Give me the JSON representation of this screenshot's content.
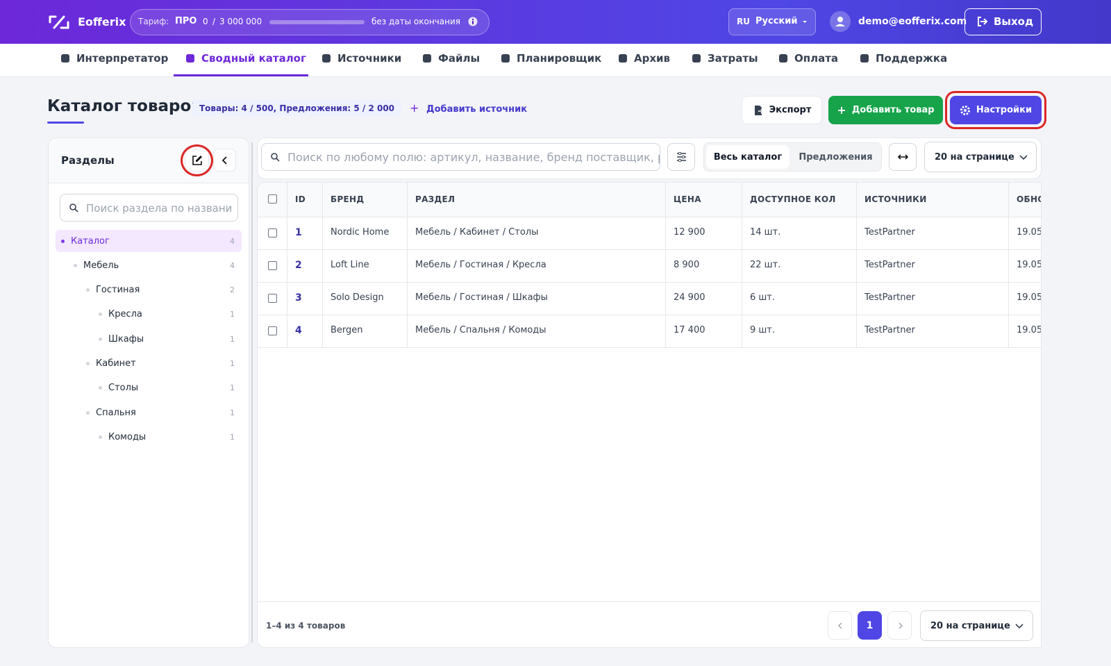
{
  "header": {
    "logo": "Eofferix",
    "plan_label": "Тариф:",
    "plan": "ПРО",
    "usage": "0",
    "separator": "/",
    "limit": "3 000 000",
    "expiry": "без даты окончания",
    "lang_code": "RU",
    "lang": "Русский",
    "user": "demo@eofferix.com",
    "logout": "Выход"
  },
  "nav": [
    "Интерпретатор",
    "Сводный каталог",
    "Источники",
    "Файлы",
    "Планировщик",
    "Архив",
    "Затраты",
    "Оплата",
    "Поддержка"
  ],
  "page": {
    "title": "Каталог товаров",
    "stats": "Товары: 4 / 500, Предложения: 5 / 2 000",
    "add_source": "Добавить источник",
    "export": "Экспорт",
    "add_product": "Добавить товар",
    "settings": "Настройки"
  },
  "sidebar": {
    "title": "Разделы",
    "search_placeholder": "Поиск раздела по названи",
    "tree": [
      {
        "label": "Каталог",
        "count": 4,
        "children": [
          {
            "label": "Мебель",
            "count": 4,
            "children": [
              {
                "label": "Гостиная",
                "count": 2,
                "children": [
                  {
                    "label": "Кресла",
                    "count": 1
                  },
                  {
                    "label": "Шкафы",
                    "count": 1
                  }
                ]
              },
              {
                "label": "Кабинет",
                "count": 1,
                "children": [
                  {
                    "label": "Столы",
                    "count": 1
                  }
                ]
              },
              {
                "label": "Спальня",
                "count": 1,
                "children": [
                  {
                    "label": "Комоды",
                    "count": 1
                  }
                ]
              }
            ]
          }
        ]
      }
    ]
  },
  "toolbar": {
    "search_placeholder": "Поиск по любому полю: артикул, название, бренд поставщик, раздел",
    "views": [
      "Весь каталог",
      "Предложения"
    ],
    "page_size": "20 на странице"
  },
  "table": {
    "columns": [
      "ID",
      "БРЕНД",
      "РАЗДЕЛ",
      "ЦЕНА",
      "ДОСТУПНОЕ КОЛ",
      "ИСТОЧНИКИ",
      "ОБНО"
    ],
    "rows": [
      [
        1,
        "Nordic Home",
        "Мебель / Кабинет / Столы",
        "12 900",
        "14 шт.",
        "TestPartner",
        "19.05"
      ],
      [
        2,
        "Loft Line",
        "Мебель / Гостиная / Кресла",
        "8 900",
        "22 шт.",
        "TestPartner",
        "19.05"
      ],
      [
        3,
        "Solo Design",
        "Мебель / Гостиная / Шкафы",
        "24 900",
        "6 шт.",
        "TestPartner",
        "19.05"
      ],
      [
        4,
        "Bergen",
        "Мебель / Спальня / Комоды",
        "17 400",
        "9 шт.",
        "TestPartner",
        "19.05"
      ]
    ]
  },
  "footer": {
    "summary": "1–4 из 4 товаров",
    "page": 1,
    "page_size": "20 на странице"
  }
}
